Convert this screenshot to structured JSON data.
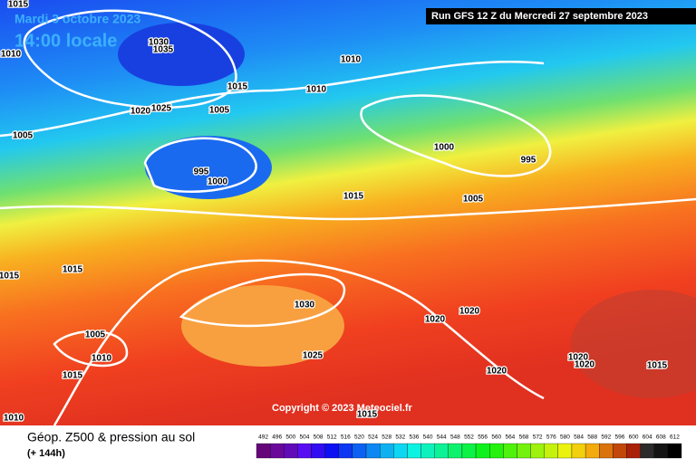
{
  "header": {
    "date": "Mardi 3 octobre 2023",
    "time": "14:00 locale",
    "run": "Run GFS 12 Z du Mercredi 27 septembre 2023"
  },
  "isobar_labels": [
    1015,
    1010,
    1010,
    1025,
    1030,
    1035,
    1015,
    1010,
    1020,
    1005,
    1005,
    995,
    1000,
    1000,
    995,
    1015,
    1005,
    1015,
    1015,
    1030,
    1020,
    1020,
    1005,
    1010,
    1025,
    1015,
    1020,
    1020,
    1020,
    1015,
    1010,
    1015
  ],
  "copyright": "Copyright © 2023 Meteociel.fr",
  "footer": {
    "title": "Géop. Z500 & pression au sol",
    "lead": "(+ 144h)"
  },
  "scale": [
    492,
    496,
    500,
    504,
    508,
    512,
    516,
    520,
    524,
    528,
    532,
    536,
    540,
    544,
    548,
    552,
    556,
    560,
    564,
    568,
    572,
    576,
    580,
    584,
    588,
    592,
    596,
    600,
    604,
    608,
    612
  ]
}
